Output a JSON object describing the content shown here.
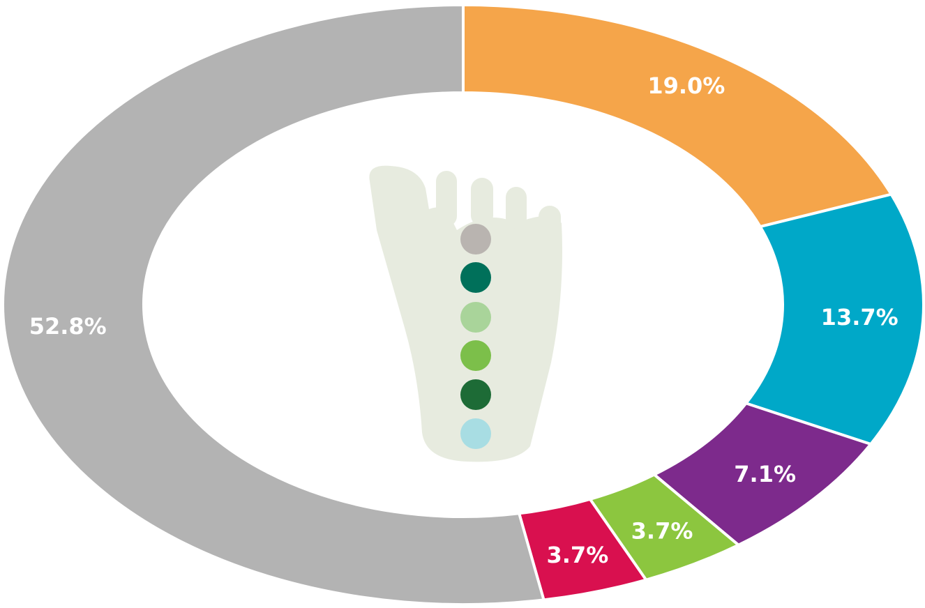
{
  "chart_data": {
    "type": "donut",
    "categories": [
      null,
      null,
      null,
      null,
      null,
      null
    ],
    "values": [
      19.0,
      13.7,
      7.1,
      3.7,
      3.7,
      52.8
    ],
    "value_labels": [
      "19.0%",
      "13.7%",
      "7.1%",
      "3.7%",
      "3.7%",
      "52.8%"
    ],
    "colors": [
      "#f5a54a",
      "#00a8c8",
      "#7d2a8c",
      "#8cc63f",
      "#d9104f",
      "#b3b3b3"
    ]
  }
}
